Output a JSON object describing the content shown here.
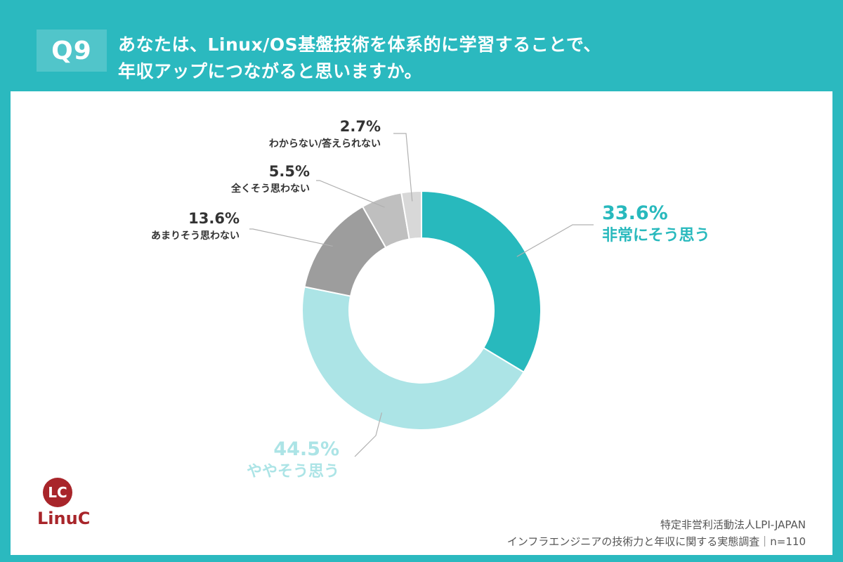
{
  "header": {
    "badge": "Q9",
    "question_line1": "あなたは、Linux/OS基盤技術を体系的に学習することで、",
    "question_line2": "年収アップにつながると思いますか。"
  },
  "colors": {
    "background": "#2bb9bf",
    "very_much": "#28b9bd",
    "somewhat": "#ace4e6",
    "not_really": "#9d9d9d",
    "not_at_all": "#bfbfbf",
    "dont_know": "#d8d8d8",
    "logo": "#a8252a"
  },
  "chart_data": {
    "type": "pie",
    "variant": "donut",
    "slices": [
      {
        "label": "非常にそう思う",
        "value": 33.6,
        "value_label": "33.6%"
      },
      {
        "label": "ややそう思う",
        "value": 44.5,
        "value_label": "44.5%"
      },
      {
        "label": "あまりそう思わない",
        "value": 13.6,
        "value_label": "13.6%"
      },
      {
        "label": "全くそう思わない",
        "value": 5.5,
        "value_label": "5.5%"
      },
      {
        "label": "わからない/答えられない",
        "value": 2.7,
        "value_label": "2.7%"
      }
    ],
    "start": "12 o'clock, clockwise"
  },
  "logo": {
    "mark": "LC",
    "name": "LinuC"
  },
  "footer": {
    "org": "特定非営利活動法人LPI-JAPAN",
    "survey": "インフラエンジニアの技術力と年収に関する実態調査｜n=110"
  }
}
